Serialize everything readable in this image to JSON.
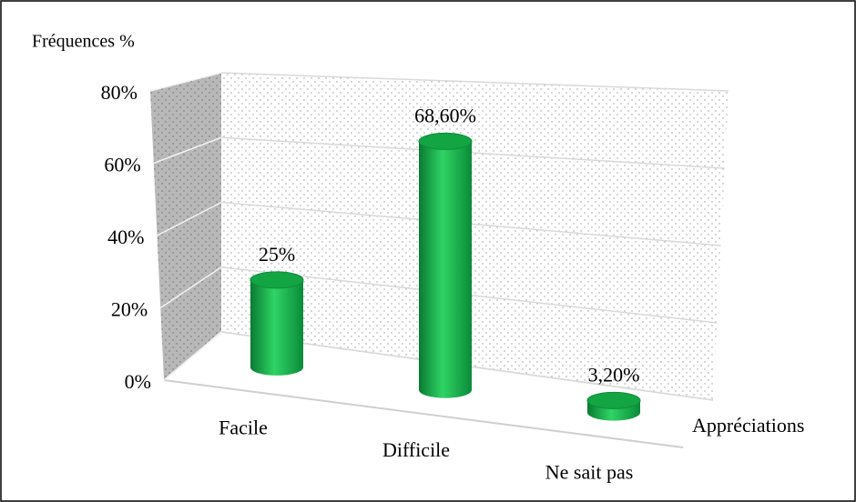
{
  "chart_data": {
    "type": "bar",
    "y_axis_label": "Fréquences %",
    "x_axis_label": "Appréciations",
    "categories": [
      "Facile",
      "Difficile",
      "Ne sait pas"
    ],
    "values": [
      25,
      68.6,
      3.2
    ],
    "value_labels": [
      "25%",
      "68,60%",
      "3,20%"
    ],
    "color": "#17b04a",
    "ylim": [
      0,
      80
    ],
    "yticks": [
      {
        "value": 0,
        "label": "0%"
      },
      {
        "value": 20,
        "label": "20%"
      },
      {
        "value": 40,
        "label": "40%"
      },
      {
        "value": 60,
        "label": "60%"
      },
      {
        "value": 80,
        "label": "80%"
      }
    ],
    "grid": true
  }
}
